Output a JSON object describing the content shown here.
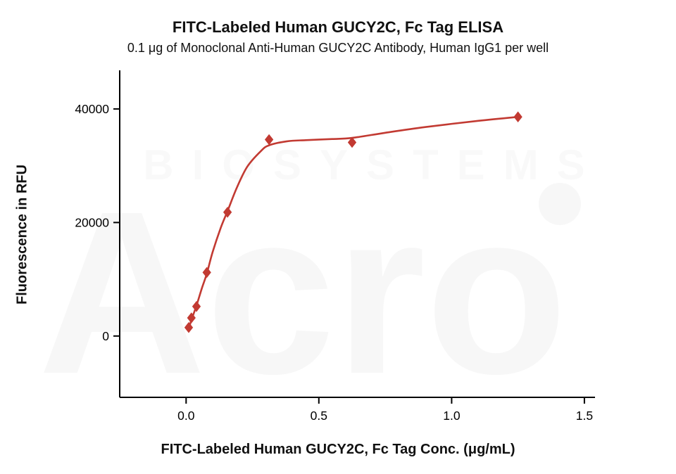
{
  "page": {
    "background": "#ffffff"
  },
  "chart_data": {
    "type": "scatter",
    "title": "FITC-Labeled Human GUCY2C, Fc Tag ELISA",
    "subtitle": "0.1 μg of Monoclonal Anti-Human GUCY2C Antibody, Human IgG1 per well",
    "xlabel": "FITC-Labeled Human GUCY2C, Fc Tag Conc. (μg/mL)",
    "ylabel": "Fluorescence in RFU",
    "legend": "none",
    "grid": false,
    "accent_color": "#c23a32",
    "axis_color": "#000000",
    "xlim": [
      -0.25,
      1.54
    ],
    "ylim": [
      -10800,
      46800
    ],
    "x_ticks": [
      0.0,
      0.5,
      1.0,
      1.5
    ],
    "x_tick_labels": [
      "0.0",
      "0.5",
      "1.0",
      "1.5"
    ],
    "y_ticks": [
      0,
      20000,
      40000
    ],
    "y_tick_labels": [
      "0",
      "20000",
      "40000"
    ],
    "series": [
      {
        "name": "FITC-Labeled Human GUCY2C, Fc Tag",
        "marker": "diamond",
        "color": "#c23a32",
        "points": [
          {
            "x": 0.01,
            "y": 1500
          },
          {
            "x": 0.02,
            "y": 3200
          },
          {
            "x": 0.039,
            "y": 5200
          },
          {
            "x": 0.078,
            "y": 11200
          },
          {
            "x": 0.156,
            "y": 21800
          },
          {
            "x": 0.3125,
            "y": 34600
          },
          {
            "x": 0.625,
            "y": 34100
          },
          {
            "x": 1.25,
            "y": 38600
          }
        ]
      }
    ],
    "fit_curve": [
      [
        0.008,
        1000
      ],
      [
        0.02,
        2800
      ],
      [
        0.04,
        5500
      ],
      [
        0.06,
        8500
      ],
      [
        0.078,
        11000
      ],
      [
        0.1,
        14800
      ],
      [
        0.13,
        19000
      ],
      [
        0.156,
        22000
      ],
      [
        0.19,
        26000
      ],
      [
        0.23,
        29800
      ],
      [
        0.28,
        32500
      ],
      [
        0.3125,
        33600
      ],
      [
        0.38,
        34300
      ],
      [
        0.45,
        34500
      ],
      [
        0.55,
        34700
      ],
      [
        0.625,
        34900
      ],
      [
        0.75,
        35800
      ],
      [
        0.9,
        36800
      ],
      [
        1.1,
        37900
      ],
      [
        1.25,
        38600
      ]
    ],
    "watermark": {
      "main": "Acro",
      "sub": "BIOSYSTEMS"
    }
  }
}
